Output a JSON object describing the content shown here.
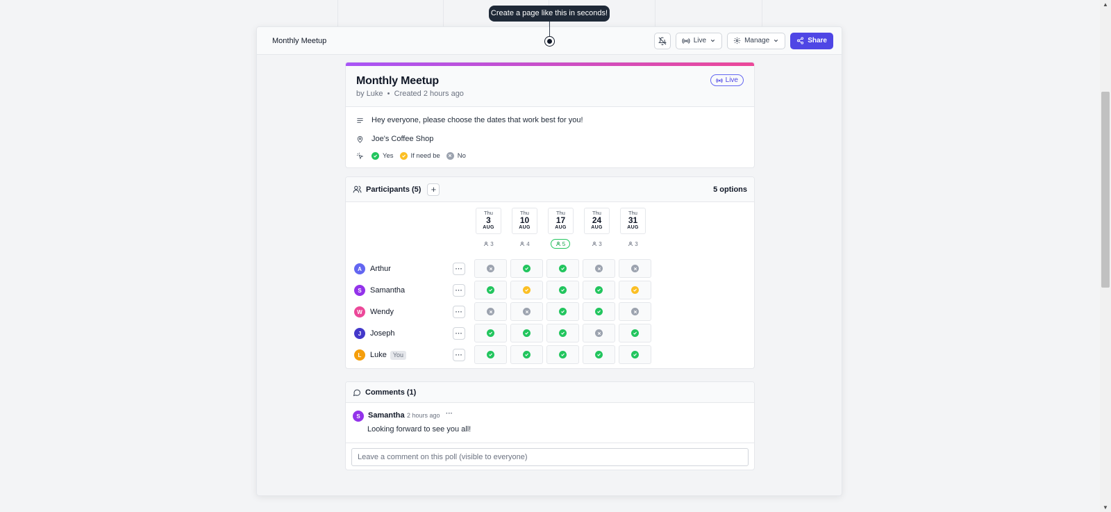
{
  "banner": {
    "text": "Create a page like this in seconds!"
  },
  "topbar": {
    "title": "Monthly Meetup",
    "live_label": "Live",
    "manage_label": "Manage",
    "share_label": "Share"
  },
  "poll": {
    "title": "Monthly Meetup",
    "author_prefix": "by",
    "author": "Luke",
    "created": "Created 2 hours ago",
    "status": "Live",
    "description": "Hey everyone, please choose the dates that work best for you!",
    "location": "Joe's Coffee Shop",
    "legend": {
      "yes": "Yes",
      "maybe": "If need be",
      "no": "No"
    }
  },
  "participants": {
    "header": "Participants (5)",
    "add_label": "+",
    "options_count": "5 options",
    "dates": [
      {
        "dow": "Thu",
        "day": "3",
        "month": "AUG",
        "count": "3",
        "best": false
      },
      {
        "dow": "Thu",
        "day": "10",
        "month": "AUG",
        "count": "4",
        "best": false
      },
      {
        "dow": "Thu",
        "day": "17",
        "month": "AUG",
        "count": "5",
        "best": true
      },
      {
        "dow": "Thu",
        "day": "24",
        "month": "AUG",
        "count": "3",
        "best": false
      },
      {
        "dow": "Thu",
        "day": "31",
        "month": "AUG",
        "count": "3",
        "best": false
      }
    ],
    "rows": [
      {
        "initial": "A",
        "name": "Arthur",
        "color": "#6366f1",
        "you": "",
        "votes": [
          "no",
          "yes",
          "yes",
          "no",
          "no"
        ]
      },
      {
        "initial": "S",
        "name": "Samantha",
        "color": "#9333ea",
        "you": "",
        "votes": [
          "yes",
          "maybe",
          "yes",
          "yes",
          "maybe"
        ]
      },
      {
        "initial": "W",
        "name": "Wendy",
        "color": "#ec4899",
        "you": "",
        "votes": [
          "no",
          "no",
          "yes",
          "yes",
          "no"
        ]
      },
      {
        "initial": "J",
        "name": "Joseph",
        "color": "#4338ca",
        "you": "",
        "votes": [
          "yes",
          "yes",
          "yes",
          "no",
          "yes"
        ]
      },
      {
        "initial": "L",
        "name": "Luke",
        "color": "#f59e0b",
        "you": "You",
        "votes": [
          "yes",
          "yes",
          "yes",
          "yes",
          "yes"
        ]
      }
    ]
  },
  "comments": {
    "header": "Comments (1)",
    "items": [
      {
        "initial": "S",
        "author": "Samantha",
        "time": "2 hours ago",
        "text": "Looking forward to see you all!",
        "color": "#9333ea"
      }
    ],
    "input_placeholder": "Leave a comment on this poll (visible to everyone)"
  },
  "colors": {
    "accent": "#4f46e5",
    "yes": "#22c55e",
    "maybe": "#fbbf24",
    "no": "#9ca3af"
  }
}
